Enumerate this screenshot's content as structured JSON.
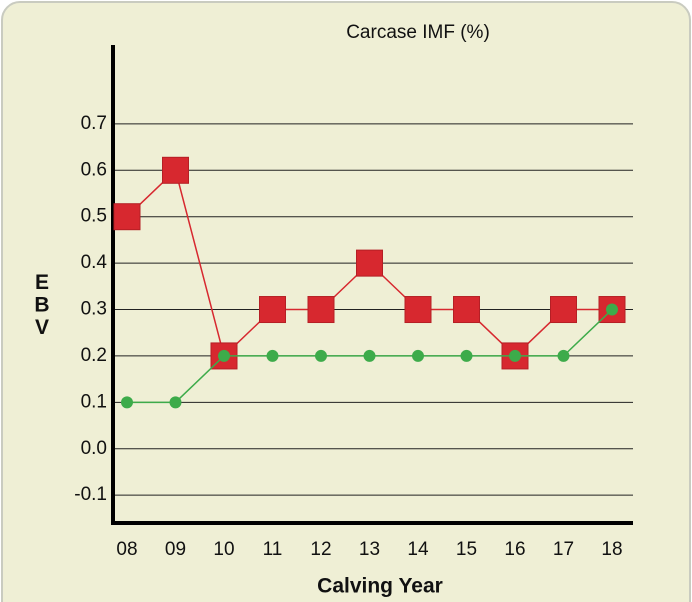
{
  "chart_data": {
    "type": "line",
    "title": "Carcase IMF (%)",
    "x_label": "Calving Year",
    "y_label": "EBV",
    "categories": [
      "08",
      "09",
      "10",
      "11",
      "12",
      "13",
      "14",
      "15",
      "16",
      "17",
      "18"
    ],
    "series": [
      {
        "color": "#d7282f",
        "marker": "square",
        "values": [
          0.5,
          0.6,
          0.2,
          0.3,
          0.3,
          0.4,
          0.3,
          0.3,
          0.2,
          0.3,
          0.3
        ]
      },
      {
        "color": "#3dab4a",
        "marker": "circle",
        "values": [
          0.1,
          0.1,
          0.2,
          0.2,
          0.2,
          0.2,
          0.2,
          0.2,
          0.2,
          0.2,
          0.3
        ]
      }
    ],
    "ylim": [
      -0.16,
      0.87
    ],
    "yticks": [
      -0.1,
      {
        "value": 0,
        "label": "0.0"
      },
      0.1,
      0.2,
      0.3,
      0.4,
      0.5,
      0.6,
      0.7
    ],
    "grid": true
  }
}
